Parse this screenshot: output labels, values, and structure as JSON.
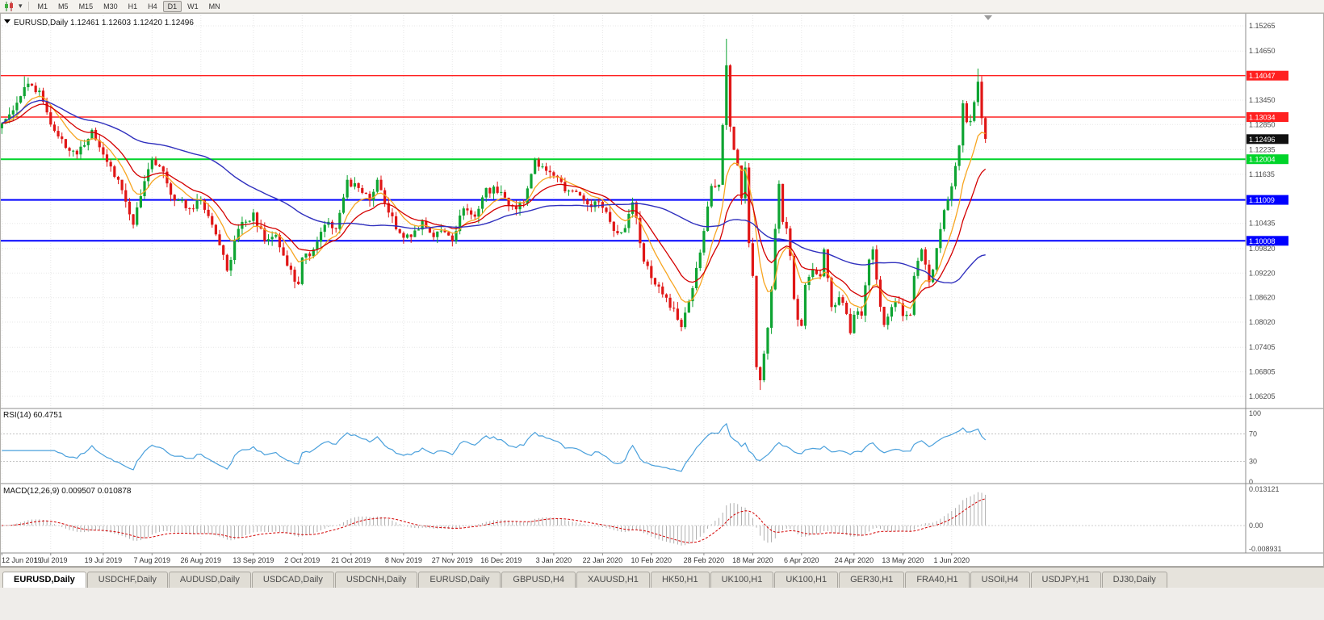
{
  "toolbar": {
    "timeframes": [
      "M1",
      "M5",
      "M15",
      "M30",
      "H1",
      "H4",
      "D1",
      "W1",
      "MN"
    ],
    "active_timeframe": "D1",
    "chart_type_icon": "candlestick-chart",
    "dropdown_icon": "chevron-down"
  },
  "chart": {
    "header": "EURUSD,Daily 1.12461 1.12603 1.12420 1.12496",
    "symbol": "EURUSD",
    "period": "Daily",
    "ohlc": {
      "open": "1.12461",
      "high": "1.12603",
      "low": "1.12420",
      "close": "1.12496"
    },
    "current_price": "1.12496",
    "axis_labels": [
      "1.15265",
      "1.14650",
      "1.13450",
      "1.12850",
      "1.12235",
      "1.11635",
      "1.10435",
      "1.09820",
      "1.09220",
      "1.08620",
      "1.08020",
      "1.07405",
      "1.06805",
      "1.06205"
    ],
    "hlines": [
      {
        "price": 1.14047,
        "label": "1.14047",
        "color": "#ff2020",
        "width": 1.4
      },
      {
        "price": 1.13034,
        "label": "1.13034",
        "color": "#ff2020",
        "width": 1.4
      },
      {
        "price": 1.12004,
        "label": "1.12004",
        "color": "#00d42a",
        "width": 2
      },
      {
        "price": 1.11009,
        "label": "1.11009",
        "color": "#0000ff",
        "width": 2
      },
      {
        "price": 1.10008,
        "label": "1.10008",
        "color": "#0000ff",
        "width": 2
      }
    ],
    "colors": {
      "up": "#0ea432",
      "down": "#e01616",
      "ma_fast": "#f7a520",
      "ma_mid": "#d40000",
      "ma_slow": "#3030be",
      "rsi": "#4aa0dc",
      "macd_hist": "#9c9c9c",
      "macd_signal": "#d40000",
      "price_badge": "#101010",
      "grid": "#e7e7e7",
      "frame": "#8c8c8c"
    }
  },
  "rsi": {
    "label": "RSI(14) 60.4751",
    "period": 14,
    "value": "60.4751",
    "levels": [
      "100",
      "70",
      "30",
      "0"
    ],
    "level_values": [
      100,
      70,
      30,
      0
    ],
    "overbought": 70,
    "oversold": 30
  },
  "macd": {
    "label": "MACD(12,26,9) 0.009507 0.010878",
    "fast": 12,
    "slow": 26,
    "signal": 9,
    "macd_value": "0.009507",
    "signal_value": "0.010878",
    "scale_max": 0.013121,
    "scale_min": -0.008931,
    "axis_labels": [
      "0.013121",
      "0.00",
      "-0.008931"
    ]
  },
  "x_axis": {
    "ticks": [
      {
        "label": "12 Jun 2019",
        "i": 0
      },
      {
        "label": "1 Jul 2019",
        "i": 13
      },
      {
        "label": "19 Jul 2019",
        "i": 27
      },
      {
        "label": "7 Aug 2019",
        "i": 40
      },
      {
        "label": "26 Aug 2019",
        "i": 53
      },
      {
        "label": "13 Sep 2019",
        "i": 67
      },
      {
        "label": "2 Oct 2019",
        "i": 80
      },
      {
        "label": "21 Oct 2019",
        "i": 93
      },
      {
        "label": "8 Nov 2019",
        "i": 107
      },
      {
        "label": "27 Nov 2019",
        "i": 120
      },
      {
        "label": "16 Dec 2019",
        "i": 133
      },
      {
        "label": "3 Jan 2020",
        "i": 147
      },
      {
        "label": "22 Jan 2020",
        "i": 160
      },
      {
        "label": "10 Feb 2020",
        "i": 173
      },
      {
        "label": "28 Feb 2020",
        "i": 187
      },
      {
        "label": "18 Mar 2020",
        "i": 200
      },
      {
        "label": "6 Apr 2020",
        "i": 213
      },
      {
        "label": "24 Apr 2020",
        "i": 227
      },
      {
        "label": "13 May 2020",
        "i": 240
      },
      {
        "label": "1 Jun 2020",
        "i": 253
      }
    ]
  },
  "tabs": [
    {
      "label": "EURUSD,Daily",
      "active": true
    },
    {
      "label": "USDCHF,Daily"
    },
    {
      "label": "AUDUSD,Daily"
    },
    {
      "label": "USDCAD,Daily"
    },
    {
      "label": "USDCNH,Daily"
    },
    {
      "label": "EURUSD,Daily"
    },
    {
      "label": "GBPUSD,H4"
    },
    {
      "label": "XAUUSD,H1"
    },
    {
      "label": "HK50,H1"
    },
    {
      "label": "UK100,H1"
    },
    {
      "label": "UK100,H1"
    },
    {
      "label": "GER30,H1"
    },
    {
      "label": "FRA40,H1"
    },
    {
      "label": "USOil,H4"
    },
    {
      "label": "USDJPY,H1"
    },
    {
      "label": "DJ30,Daily"
    }
  ],
  "chart_data": {
    "type": "candlestick",
    "symbol": "EURUSD",
    "timeframe": "Daily",
    "num_candles": 263,
    "price_scale": {
      "p_top": 1.15265,
      "p_bottom": 1.06205
    },
    "noise_amplitude": 0.0011,
    "seed": 11,
    "close_anchors": [
      [
        0,
        1.1288
      ],
      [
        3,
        1.132
      ],
      [
        7,
        1.1385
      ],
      [
        10,
        1.1368
      ],
      [
        13,
        1.1285
      ],
      [
        17,
        1.1228
      ],
      [
        20,
        1.1212
      ],
      [
        24,
        1.1272
      ],
      [
        27,
        1.1212
      ],
      [
        31,
        1.115
      ],
      [
        35,
        1.104
      ],
      [
        37,
        1.111
      ],
      [
        40,
        1.12
      ],
      [
        43,
        1.117
      ],
      [
        46,
        1.11
      ],
      [
        50,
        1.108
      ],
      [
        53,
        1.11
      ],
      [
        56,
        1.104
      ],
      [
        58,
        1.099
      ],
      [
        60,
        1.0928
      ],
      [
        63,
        1.103
      ],
      [
        67,
        1.107
      ],
      [
        70,
        1.1
      ],
      [
        73,
        1.1015
      ],
      [
        76,
        1.094
      ],
      [
        79,
        1.0895
      ],
      [
        80,
        1.096
      ],
      [
        83,
        1.098
      ],
      [
        86,
        1.104
      ],
      [
        89,
        1.103
      ],
      [
        92,
        1.115
      ],
      [
        95,
        1.113
      ],
      [
        98,
        1.11
      ],
      [
        100,
        1.115
      ],
      [
        103,
        1.107
      ],
      [
        106,
        1.102
      ],
      [
        109,
        1.101
      ],
      [
        112,
        1.105
      ],
      [
        115,
        1.101
      ],
      [
        118,
        1.1022
      ],
      [
        120,
        1.1
      ],
      [
        123,
        1.108
      ],
      [
        126,
        1.106
      ],
      [
        129,
        1.113
      ],
      [
        133,
        1.112
      ],
      [
        136,
        1.1085
      ],
      [
        139,
        1.1092
      ],
      [
        142,
        1.12
      ],
      [
        145,
        1.1172
      ],
      [
        147,
        1.116
      ],
      [
        150,
        1.1122
      ],
      [
        153,
        1.112
      ],
      [
        156,
        1.109
      ],
      [
        159,
        1.1096
      ],
      [
        163,
        1.1025
      ],
      [
        166,
        1.1032
      ],
      [
        168,
        1.1095
      ],
      [
        171,
        1.095
      ],
      [
        173,
        1.091
      ],
      [
        176,
        1.087
      ],
      [
        179,
        1.0835
      ],
      [
        181,
        1.079
      ],
      [
        184,
        1.0885
      ],
      [
        187,
        1.1025
      ],
      [
        189,
        1.1135
      ],
      [
        191,
        1.1138
      ],
      [
        192,
        1.1284
      ],
      [
        193,
        1.143
      ],
      [
        194,
        1.128
      ],
      [
        196,
        1.1185
      ],
      [
        197,
        1.1105
      ],
      [
        198,
        1.118
      ],
      [
        199,
        1.0995
      ],
      [
        200,
        1.0915
      ],
      [
        201,
        1.0692
      ],
      [
        202,
        1.066
      ],
      [
        203,
        1.0725
      ],
      [
        204,
        1.0788
      ],
      [
        205,
        1.0882
      ],
      [
        206,
        1.103
      ],
      [
        207,
        1.114
      ],
      [
        208,
        1.1047
      ],
      [
        209,
        1.1031
      ],
      [
        210,
        1.0964
      ],
      [
        211,
        1.0859
      ],
      [
        212,
        1.0808
      ],
      [
        213,
        1.0793
      ],
      [
        214,
        1.0893
      ],
      [
        216,
        1.093
      ],
      [
        218,
        1.0914
      ],
      [
        219,
        1.098
      ],
      [
        220,
        1.091
      ],
      [
        221,
        1.0839
      ],
      [
        223,
        1.0863
      ],
      [
        225,
        1.0822
      ],
      [
        226,
        1.0775
      ],
      [
        227,
        1.082
      ],
      [
        229,
        1.0818
      ],
      [
        231,
        1.0955
      ],
      [
        232,
        1.098
      ],
      [
        233,
        1.0906
      ],
      [
        235,
        1.0795
      ],
      [
        237,
        1.0839
      ],
      [
        239,
        1.0848
      ],
      [
        240,
        1.0817
      ],
      [
        242,
        1.082
      ],
      [
        243,
        1.0915
      ],
      [
        245,
        1.098
      ],
      [
        247,
        1.09
      ],
      [
        249,
        1.0983
      ],
      [
        251,
        1.1076
      ],
      [
        252,
        1.1101
      ],
      [
        253,
        1.1134
      ],
      [
        255,
        1.1234
      ],
      [
        256,
        1.1337
      ],
      [
        257,
        1.1291
      ],
      [
        258,
        1.1294
      ],
      [
        259,
        1.134
      ],
      [
        260,
        1.139
      ],
      [
        261,
        1.1301
      ],
      [
        262,
        1.125
      ]
    ],
    "wick_overrides": {
      "6": {
        "high": 1.1403
      },
      "7": {
        "high": 1.14
      },
      "193": {
        "high": 1.1495
      },
      "202": {
        "low": 1.0636
      },
      "260": {
        "high": 1.1422
      }
    },
    "moving_averages": [
      {
        "name": "ema-9",
        "color_key": "ma_fast"
      },
      {
        "name": "ema-18",
        "color_key": "ma_mid"
      },
      {
        "name": "sma-55",
        "color_key": "ma_slow"
      }
    ]
  }
}
